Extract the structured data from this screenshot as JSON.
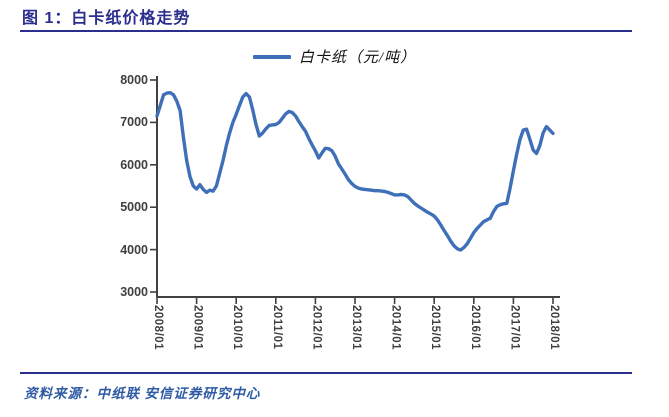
{
  "figure": {
    "title": "图 1：白卡纸价格走势",
    "source": "资料来源：中纸联  安信证券研究中心"
  },
  "colors": {
    "title": "#2B2E8C",
    "rule": "#2B2E8C",
    "source": "#2F5BA5",
    "line": "#3E6FB8",
    "axis": "#404040",
    "tick_label": "#3F3F3F"
  },
  "chart_data": {
    "type": "line",
    "title": "白卡纸价格走势",
    "legend_entries": [
      {
        "name": "白卡纸（元/吨）",
        "color": "#3E6FB8"
      }
    ],
    "legend_position": "top-center",
    "grid": false,
    "ylabel": "",
    "xlabel": "",
    "ylim": [
      3000,
      8000
    ],
    "yticks": [
      8000,
      7000,
      6000,
      5000,
      4000,
      3000
    ],
    "xticks": [
      "2008/01",
      "2009/01",
      "2010/01",
      "2011/01",
      "2012/01",
      "2013/01",
      "2014/01",
      "2015/01",
      "2016/01",
      "2017/01",
      "2018/01"
    ],
    "x_frequency": "monthly",
    "x_start": "2008/01",
    "x_end": "2018/01",
    "series": [
      {
        "name": "白卡纸（元/吨）",
        "unit": "元/吨",
        "values": [
          7150,
          7400,
          7650,
          7690,
          7700,
          7650,
          7500,
          7280,
          6650,
          6100,
          5720,
          5500,
          5430,
          5530,
          5420,
          5350,
          5400,
          5380,
          5500,
          5800,
          6100,
          6450,
          6750,
          7000,
          7190,
          7400,
          7600,
          7680,
          7600,
          7300,
          6950,
          6680,
          6750,
          6850,
          6930,
          6940,
          6950,
          7000,
          7100,
          7200,
          7260,
          7230,
          7150,
          7020,
          6900,
          6790,
          6620,
          6470,
          6330,
          6160,
          6280,
          6390,
          6380,
          6330,
          6200,
          6020,
          5900,
          5780,
          5650,
          5560,
          5490,
          5450,
          5430,
          5420,
          5410,
          5400,
          5390,
          5390,
          5380,
          5370,
          5350,
          5320,
          5290,
          5290,
          5300,
          5290,
          5250,
          5170,
          5090,
          5030,
          4980,
          4930,
          4880,
          4840,
          4790,
          4700,
          4580,
          4450,
          4330,
          4200,
          4090,
          4020,
          3990,
          4050,
          4140,
          4270,
          4400,
          4500,
          4580,
          4660,
          4700,
          4740,
          4900,
          5020,
          5060,
          5080,
          5090,
          5450,
          5860,
          6250,
          6600,
          6820,
          6840,
          6600,
          6350,
          6270,
          6450,
          6750,
          6900,
          6820,
          6740
        ]
      }
    ]
  }
}
